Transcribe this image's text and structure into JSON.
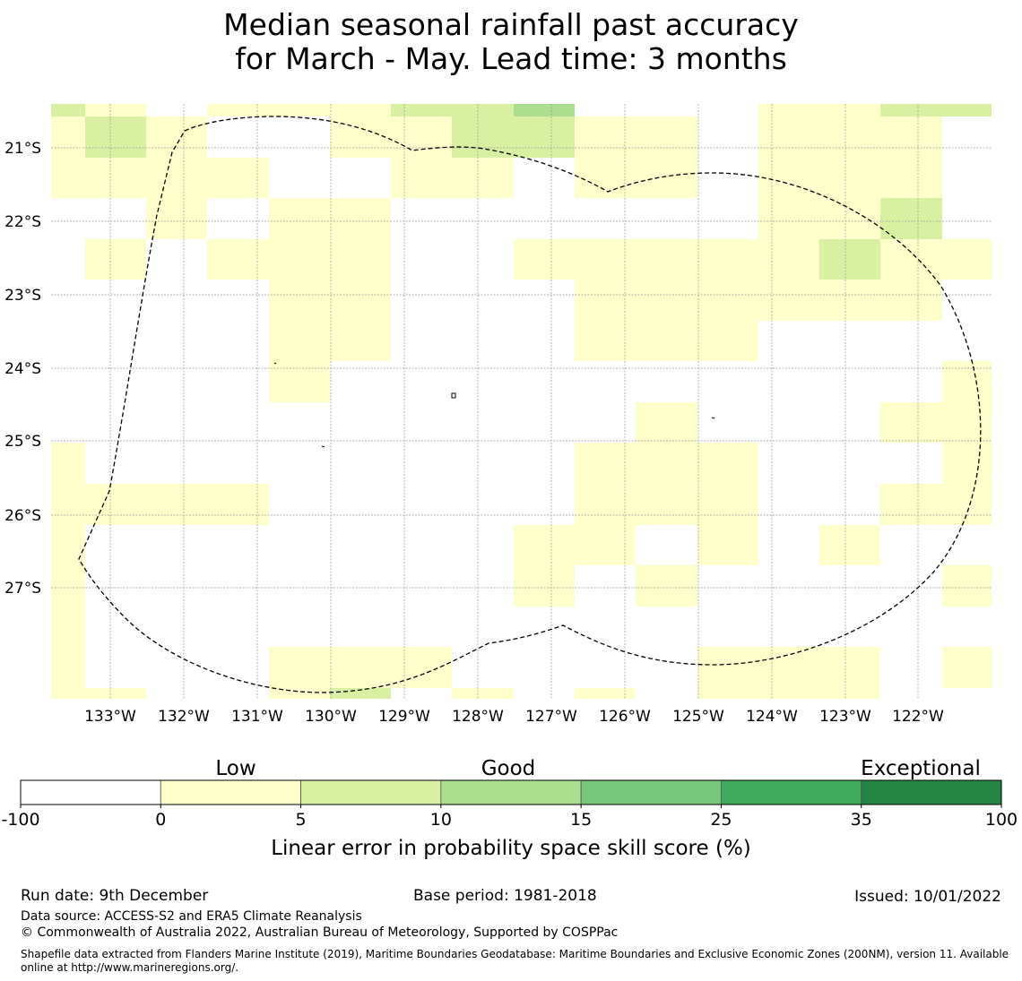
{
  "title": {
    "line1": "Median seasonal rainfall past accuracy",
    "line2": "for March - May. Lead time: 3 months"
  },
  "map": {
    "lon_labels": [
      "133°W",
      "132°W",
      "131°W",
      "130°W",
      "129°W",
      "128°W",
      "127°W",
      "126°W",
      "125°W",
      "124°W",
      "123°W",
      "122°W"
    ],
    "lat_labels": [
      "21°S",
      "22°S",
      "23°S",
      "24°S",
      "25°S",
      "26°S",
      "27°S"
    ],
    "cell_colors": {
      "low": "#ffffcc",
      "good_light": "#d9f0a3",
      "good": "#addd8e"
    }
  },
  "legend": {
    "category_labels": [
      "Low",
      "Good",
      "Exceptional"
    ],
    "tick_labels": [
      "-100",
      "0",
      "5",
      "10",
      "15",
      "25",
      "35",
      "100"
    ],
    "colors": [
      "#ffffff",
      "#ffffcc",
      "#d9f0a3",
      "#addd8e",
      "#78c679",
      "#41ab5d",
      "#238443"
    ],
    "axis_label": "Linear error in probability space skill score (%)"
  },
  "footer": {
    "run_date": "Run date: 9th December",
    "base_period": "Base period: 1981-2018",
    "issued": "Issued: 10/01/2022",
    "data_source": "Data source: ACCESS-S2 and ERA5 Climate Reanalysis",
    "copyright": "© Commonwealth of Australia 2022, Australian Bureau of Meteorology, Supported by COSPPac",
    "shapefile": "Shapefile data extracted from Flanders Marine Institute (2019), Maritime Boundaries Geodatabase: Maritime Boundaries and Exclusive Economic Zones (200NM), version 11. Available online at http://www.marineregions.org/."
  }
}
